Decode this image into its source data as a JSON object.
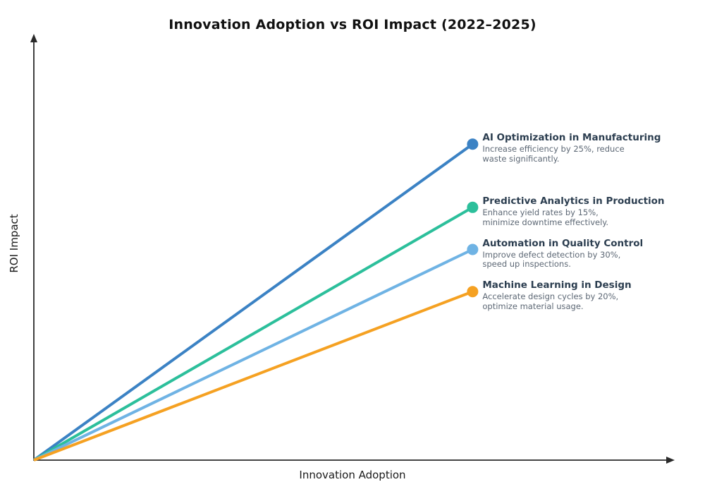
{
  "chart_data": {
    "type": "line",
    "title": "Innovation Adoption vs ROI Impact (2022–2025)",
    "xlabel": "Innovation Adoption",
    "ylabel": "ROI Impact",
    "xlim": [
      0,
      1
    ],
    "ylim": [
      0,
      1
    ],
    "grid": false,
    "legend_position": "inline-right-annotations",
    "axis_color": "#2a2a2a",
    "origin": {
      "x": 0,
      "y": 0
    },
    "series": [
      {
        "name": "AI Optimization in Manufacturing",
        "description": "Increase efficiency by 25%, reduce\nwaste significantly.",
        "color": "#3b82c4",
        "x": [
          0,
          0.69
        ],
        "y": [
          0,
          0.75
        ]
      },
      {
        "name": "Predictive Analytics in Production",
        "description": "Enhance yield rates by 15%,\nminimize downtime effectively.",
        "color": "#2cbf9b",
        "x": [
          0,
          0.69
        ],
        "y": [
          0,
          0.6
        ]
      },
      {
        "name": "Automation in Quality Control",
        "description": "Improve defect detection by 30%,\nspeed up inspections.",
        "color": "#6fb3e4",
        "x": [
          0,
          0.69
        ],
        "y": [
          0,
          0.5
        ]
      },
      {
        "name": "Machine Learning in Design",
        "description": "Accelerate design cycles by 20%,\noptimize material usage.",
        "color": "#f5a122",
        "x": [
          0,
          0.69
        ],
        "y": [
          0,
          0.4
        ]
      }
    ]
  }
}
